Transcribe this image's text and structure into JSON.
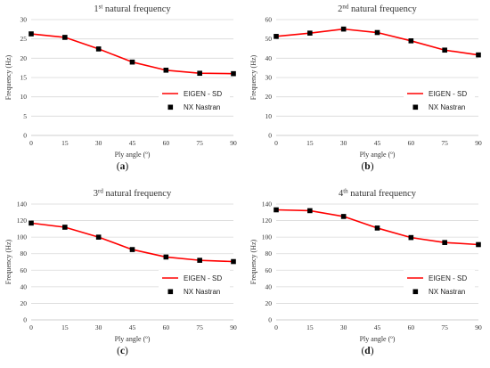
{
  "chart_data": [
    {
      "type": "line",
      "title": "1st natural frequency",
      "title_main": "1",
      "title_sup": "st",
      "title_rest": " natural frequency",
      "xlabel": "Ply angle (º)",
      "ylabel": "Frequency (Hz)",
      "x": [
        0,
        15,
        30,
        45,
        60,
        75,
        90
      ],
      "xlim": [
        0,
        90
      ],
      "ylim": [
        0,
        30
      ],
      "yticks": [
        0,
        5,
        10,
        15,
        20,
        25,
        30
      ],
      "grid": true,
      "legend_position": "bottom-right",
      "series": [
        {
          "name": "EIGEN - SD",
          "style": "line",
          "color": "#ff0000",
          "values": [
            26.3,
            25.4,
            22.4,
            19.0,
            16.9,
            16.1,
            16.0
          ]
        },
        {
          "name": "NX Nastran",
          "style": "square-markers",
          "color": "#000000",
          "values": [
            26.3,
            25.4,
            22.4,
            19.0,
            16.9,
            16.1,
            16.0
          ]
        }
      ],
      "panel_label": "(a)"
    },
    {
      "type": "line",
      "title": "2nd natural frequency",
      "title_main": "2",
      "title_sup": "nd",
      "title_rest": " natural frequency",
      "xlabel": "Ply angle (º)",
      "ylabel": "Frequency (Hz)",
      "x": [
        0,
        15,
        30,
        45,
        60,
        75,
        90
      ],
      "xlim": [
        0,
        90
      ],
      "ylim": [
        0,
        60
      ],
      "yticks": [
        0,
        10,
        20,
        30,
        40,
        50,
        60
      ],
      "grid": true,
      "legend_position": "bottom-right",
      "series": [
        {
          "name": "EIGEN - SD",
          "style": "line",
          "color": "#ff0000",
          "values": [
            51.3,
            53.0,
            55.1,
            53.3,
            49.0,
            44.2,
            41.7
          ]
        },
        {
          "name": "NX Nastran",
          "style": "square-markers",
          "color": "#000000",
          "values": [
            51.3,
            53.0,
            55.1,
            53.3,
            49.0,
            44.2,
            41.7
          ]
        }
      ],
      "panel_label": "(b)"
    },
    {
      "type": "line",
      "title": "3rd natural frequency",
      "title_main": "3",
      "title_sup": "rd",
      "title_rest": " natural frequency",
      "xlabel": "Ply angle (º)",
      "ylabel": "Frequency (Hz)",
      "x": [
        0,
        15,
        30,
        45,
        60,
        75,
        90
      ],
      "xlim": [
        0,
        90
      ],
      "ylim": [
        0,
        140
      ],
      "yticks": [
        0,
        20,
        40,
        60,
        80,
        100,
        120,
        140
      ],
      "grid": true,
      "legend_position": "bottom-right",
      "series": [
        {
          "name": "EIGEN - SD",
          "style": "line",
          "color": "#ff0000",
          "values": [
            117,
            112,
            100,
            85,
            76,
            72,
            70.5
          ]
        },
        {
          "name": "NX Nastran",
          "style": "square-markers",
          "color": "#000000",
          "values": [
            117,
            112,
            100,
            85,
            76,
            72,
            70.5
          ]
        }
      ],
      "panel_label": "(c)"
    },
    {
      "type": "line",
      "title": "4th natural frequency",
      "title_main": "4",
      "title_sup": "th",
      "title_rest": " natural frequency",
      "xlabel": "Ply angle (º)",
      "ylabel": "Frequency (Hz)",
      "x": [
        0,
        15,
        30,
        45,
        60,
        75,
        90
      ],
      "xlim": [
        0,
        90
      ],
      "ylim": [
        0,
        140
      ],
      "yticks": [
        0,
        20,
        40,
        60,
        80,
        100,
        120,
        140
      ],
      "grid": true,
      "legend_position": "bottom-right",
      "series": [
        {
          "name": "EIGEN - SD",
          "style": "line",
          "color": "#ff0000",
          "values": [
            133,
            132,
            125,
            111,
            99.5,
            93.5,
            91
          ]
        },
        {
          "name": "NX Nastran",
          "style": "square-markers",
          "color": "#000000",
          "values": [
            133,
            132,
            125,
            111,
            99.5,
            93.5,
            91
          ]
        }
      ],
      "panel_label": "(d)"
    }
  ],
  "panel_labels": [
    "a",
    "b",
    "c",
    "d"
  ],
  "colors": {
    "grid": "#d9d9d9",
    "axis": "#bfbfbf",
    "line": "#ff0000",
    "marker": "#000000"
  }
}
